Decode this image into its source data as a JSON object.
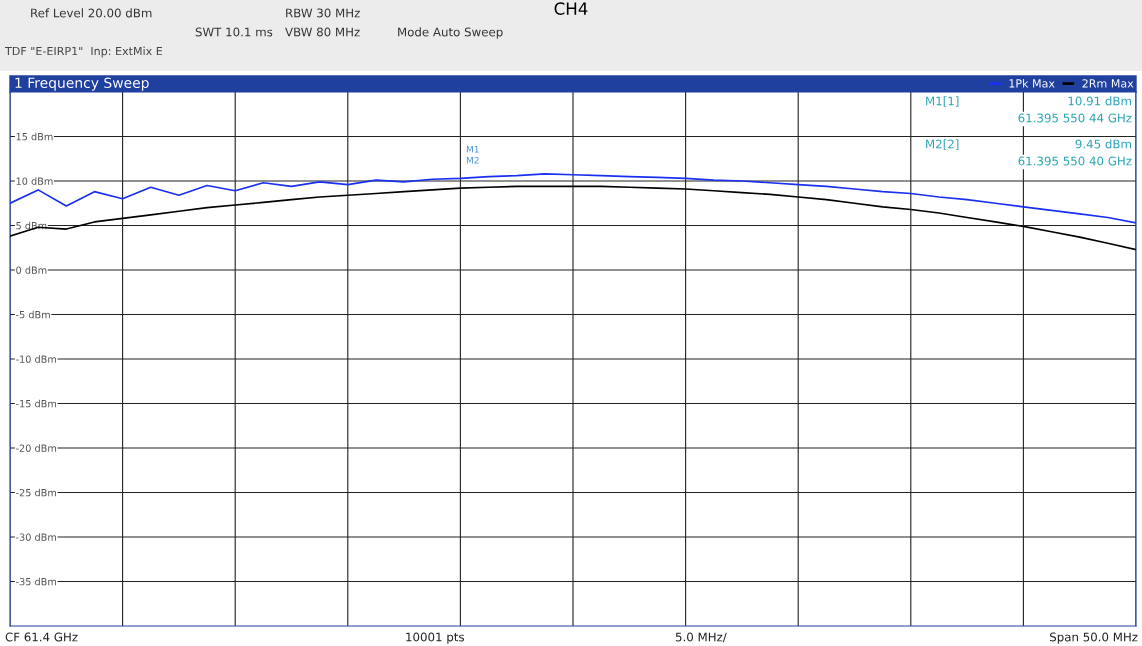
{
  "chart_data": {
    "type": "line",
    "title": "CH4",
    "subtitle": "1 Frequency Sweep",
    "categories": [
      null,
      null,
      null,
      null,
      null,
      null,
      null,
      null,
      null,
      null,
      null,
      null,
      null,
      null,
      null,
      null,
      null,
      null,
      null,
      null,
      null,
      null,
      null,
      null,
      null,
      null,
      null,
      null,
      null,
      null,
      null,
      null,
      null,
      null,
      null,
      null,
      null,
      null,
      null,
      null,
      null
    ],
    "series": [
      {
        "name": "1Pk Max",
        "color": "#1a2ff0",
        "values": [
          7.5,
          9.0,
          7.2,
          8.8,
          8.0,
          9.3,
          8.4,
          9.5,
          8.9,
          9.8,
          9.4,
          9.9,
          9.6,
          10.1,
          9.9,
          10.2,
          10.3,
          10.5,
          10.6,
          10.8,
          10.7,
          10.6,
          10.5,
          10.4,
          10.3,
          10.1,
          10.0,
          9.8,
          9.6,
          9.4,
          9.1,
          8.8,
          8.6,
          8.2,
          7.9,
          7.5,
          7.1,
          6.7,
          6.3,
          5.9,
          5.3
        ]
      },
      {
        "name": "2Rm Max",
        "color": "#000000",
        "values": [
          3.8,
          4.8,
          4.6,
          5.4,
          5.8,
          6.2,
          6.6,
          7.0,
          7.3,
          7.6,
          7.9,
          8.2,
          8.4,
          8.6,
          8.8,
          9.0,
          9.2,
          9.3,
          9.4,
          9.4,
          9.4,
          9.4,
          9.3,
          9.2,
          9.1,
          8.9,
          8.7,
          8.5,
          8.2,
          7.9,
          7.5,
          7.1,
          6.8,
          6.4,
          5.9,
          5.4,
          4.9,
          4.3,
          3.7,
          3.0,
          2.3
        ]
      }
    ],
    "ylim": [
      -40,
      20
    ],
    "yticks": [
      {
        "value": -35,
        "label": "-35 dBm"
      },
      {
        "value": -30,
        "label": "-30 dBm"
      },
      {
        "value": -25,
        "label": "-25 dBm"
      },
      {
        "value": -20,
        "label": "-20 dBm"
      },
      {
        "value": -15,
        "label": "-15 dBm"
      },
      {
        "value": -10,
        "label": "-10 dBm"
      },
      {
        "value": -5,
        "label": "-5 dBm"
      },
      {
        "value": 0,
        "label": "0 dBm"
      },
      {
        "value": 5,
        "label": "5 dBm"
      },
      {
        "value": 10,
        "label": "10 dBm"
      },
      {
        "value": 15,
        "label": "15 dBm"
      }
    ],
    "grid": true,
    "legend": "top right",
    "marker": "none",
    "line_style": "solid",
    "annotations": [
      "Ref Level 20.00 dBm",
      "RBW 30 MHz",
      "SWT 10.1 ms",
      "VBW 80 MHz",
      "Mode Auto Sweep",
      "TDF \"E-EIRP1\"  Inp: ExtMix E",
      "M1[1]",
      "10.91 dBm",
      "61.395 550 44 GHz",
      "M2[2]",
      "9.45 dBm",
      "61.395 550 40 GHz",
      "M1",
      "M2",
      "CF 61.4 GHz",
      "10001 pts",
      "5.0 MHz/",
      "Span 50.0 MHz"
    ]
  }
}
